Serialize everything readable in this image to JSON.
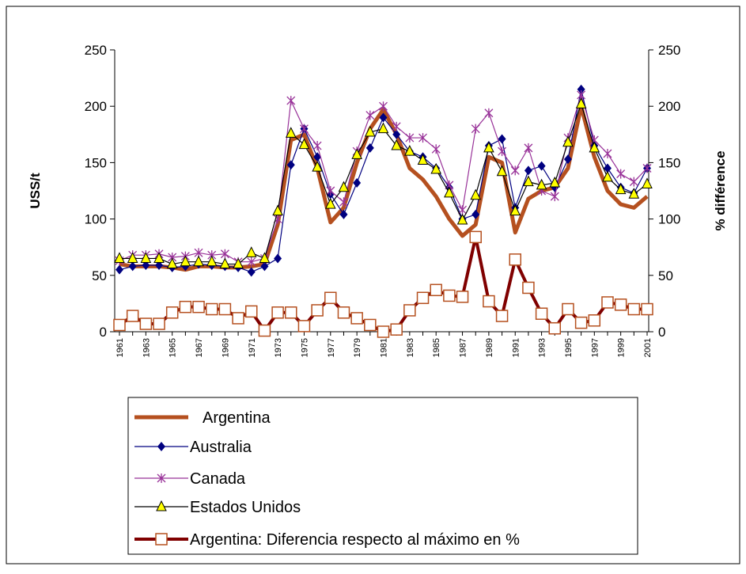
{
  "chart_data": {
    "type": "line",
    "y_label": "USS/t",
    "y2_label": "% différence",
    "categories": [
      "1961",
      null,
      "1963",
      null,
      "1965",
      null,
      "1967",
      null,
      "1969",
      null,
      "1971",
      null,
      "1973",
      null,
      "1975",
      null,
      "1977",
      null,
      "1979",
      null,
      "1981",
      null,
      "1983",
      null,
      "1985",
      null,
      "1987",
      null,
      "1989",
      null,
      "1991",
      null,
      "1993",
      null,
      "1995",
      null,
      "1997",
      null,
      "1999",
      null,
      "2001"
    ],
    "ylim": [
      0,
      250
    ],
    "yticks": [
      0,
      50,
      100,
      150,
      200,
      250
    ],
    "y2lim": [
      0,
      250
    ],
    "y2ticks": [
      0,
      50,
      100,
      150,
      200,
      250
    ],
    "series": [
      {
        "name": "Argentina",
        "color": "#b5501f",
        "marker": "none",
        "values": [
          60,
          58,
          58,
          58,
          57,
          55,
          58,
          58,
          57,
          57,
          58,
          60,
          95,
          170,
          175,
          145,
          97,
          110,
          150,
          180,
          197,
          175,
          145,
          135,
          120,
          100,
          85,
          95,
          155,
          150,
          88,
          118,
          125,
          128,
          145,
          200,
          155,
          125,
          113,
          110,
          120
        ]
      },
      {
        "name": "Australia",
        "color": "#000080",
        "marker": "diamond",
        "values": [
          55,
          58,
          59,
          59,
          57,
          58,
          60,
          59,
          58,
          57,
          53,
          58,
          65,
          148,
          180,
          155,
          122,
          104,
          132,
          163,
          190,
          175,
          160,
          155,
          145,
          128,
          100,
          104,
          165,
          171,
          110,
          143,
          147,
          128,
          153,
          215,
          165,
          145,
          128,
          123,
          145
        ]
      },
      {
        "name": "Canada",
        "color": "#993399",
        "marker": "star",
        "values": [
          63,
          68,
          68,
          69,
          66,
          67,
          70,
          68,
          69,
          62,
          62,
          65,
          100,
          205,
          180,
          165,
          125,
          115,
          160,
          192,
          200,
          182,
          172,
          172,
          162,
          130,
          108,
          180,
          194,
          160,
          143,
          163,
          125,
          120,
          172,
          210,
          170,
          158,
          140,
          133,
          145
        ]
      },
      {
        "name": "Estados Unidos",
        "color": "#000000",
        "marker": "triangle",
        "values": [
          65,
          65,
          65,
          65,
          60,
          62,
          62,
          62,
          60,
          60,
          70,
          65,
          107,
          176,
          166,
          146,
          113,
          128,
          157,
          177,
          180,
          165,
          160,
          152,
          144,
          123,
          99,
          121,
          163,
          142,
          107,
          133,
          130,
          132,
          168,
          202,
          163,
          137,
          126,
          122,
          131
        ]
      },
      {
        "name": "Argentina: Diferencia respecto al máximo en %",
        "color": "#800000",
        "marker": "square",
        "axis": "y2",
        "values": [
          6,
          14,
          7,
          7,
          17,
          22,
          22,
          20,
          20,
          12,
          18,
          1,
          17,
          17,
          5,
          19,
          30,
          17,
          12,
          6,
          0,
          2,
          19,
          30,
          37,
          32,
          31,
          84,
          27,
          14,
          64,
          39,
          16,
          3,
          20,
          8,
          10,
          26,
          24,
          20,
          20
        ]
      }
    ]
  }
}
